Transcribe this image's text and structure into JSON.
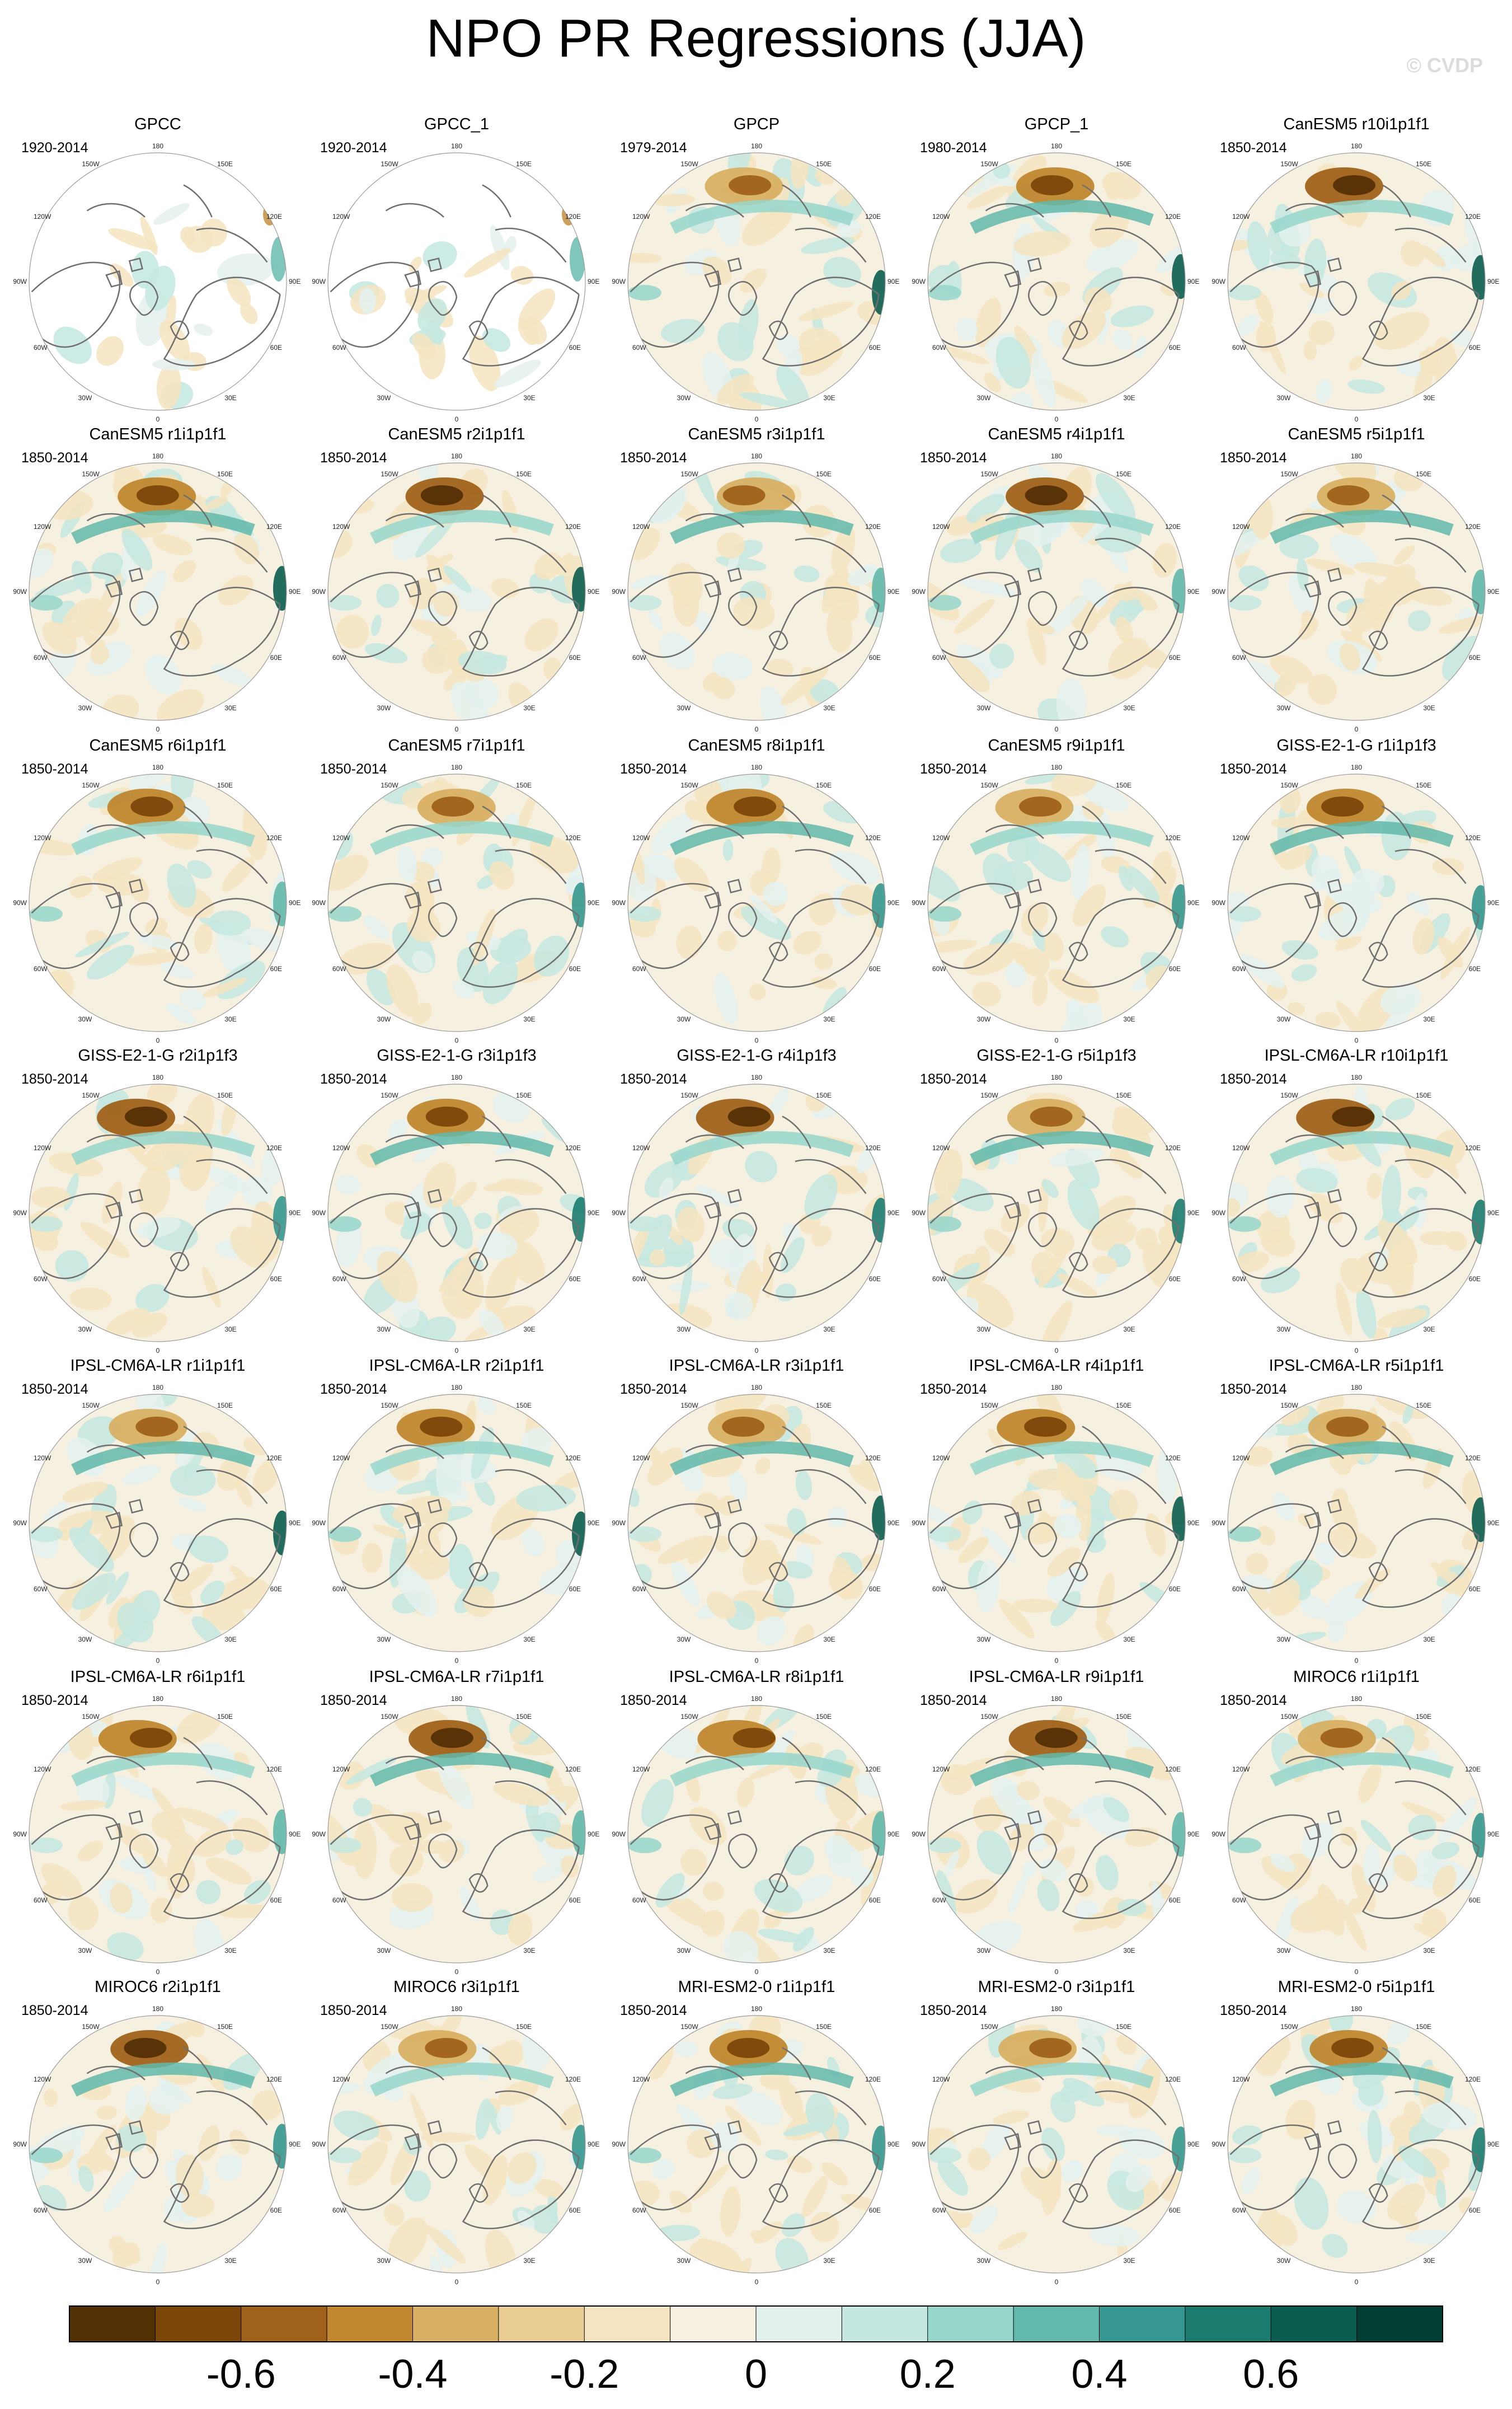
{
  "title": "NPO PR Regressions (JJA)",
  "watermark": "© CVDP",
  "map_labels": {
    "top": "180",
    "top_left": "150W",
    "top_right": "150E",
    "upper_left": "120W",
    "upper_right": "120E",
    "left": "90W",
    "right": "90E",
    "lower_left": "60W",
    "lower_right": "60E",
    "bottom_left": "30W",
    "bottom_right": "30E",
    "bottom": "0"
  },
  "chart_data": {
    "type": "heatmap",
    "projection": "north-polar stereographic",
    "panels": [
      {
        "title": "GPCC",
        "period": "1920-2014",
        "coverage": "land"
      },
      {
        "title": "GPCC_1",
        "period": "1920-2014",
        "coverage": "land"
      },
      {
        "title": "GPCP",
        "period": "1979-2014",
        "coverage": "full"
      },
      {
        "title": "GPCP_1",
        "period": "1980-2014",
        "coverage": "full"
      },
      {
        "title": "CanESM5 r10i1p1f1",
        "period": "1850-2014",
        "coverage": "full"
      },
      {
        "title": "CanESM5 r1i1p1f1",
        "period": "1850-2014",
        "coverage": "full"
      },
      {
        "title": "CanESM5 r2i1p1f1",
        "period": "1850-2014",
        "coverage": "full"
      },
      {
        "title": "CanESM5 r3i1p1f1",
        "period": "1850-2014",
        "coverage": "full"
      },
      {
        "title": "CanESM5 r4i1p1f1",
        "period": "1850-2014",
        "coverage": "full"
      },
      {
        "title": "CanESM5 r5i1p1f1",
        "period": "1850-2014",
        "coverage": "full"
      },
      {
        "title": "CanESM5 r6i1p1f1",
        "period": "1850-2014",
        "coverage": "full"
      },
      {
        "title": "CanESM5 r7i1p1f1",
        "period": "1850-2014",
        "coverage": "full"
      },
      {
        "title": "CanESM5 r8i1p1f1",
        "period": "1850-2014",
        "coverage": "full"
      },
      {
        "title": "CanESM5 r9i1p1f1",
        "period": "1850-2014",
        "coverage": "full"
      },
      {
        "title": "GISS-E2-1-G r1i1p1f3",
        "period": "1850-2014",
        "coverage": "full"
      },
      {
        "title": "GISS-E2-1-G r2i1p1f3",
        "period": "1850-2014",
        "coverage": "full"
      },
      {
        "title": "GISS-E2-1-G r3i1p1f3",
        "period": "1850-2014",
        "coverage": "full"
      },
      {
        "title": "GISS-E2-1-G r4i1p1f3",
        "period": "1850-2014",
        "coverage": "full"
      },
      {
        "title": "GISS-E2-1-G r5i1p1f3",
        "period": "1850-2014",
        "coverage": "full"
      },
      {
        "title": "IPSL-CM6A-LR r10i1p1f1",
        "period": "1850-2014",
        "coverage": "full"
      },
      {
        "title": "IPSL-CM6A-LR r1i1p1f1",
        "period": "1850-2014",
        "coverage": "full"
      },
      {
        "title": "IPSL-CM6A-LR r2i1p1f1",
        "period": "1850-2014",
        "coverage": "full"
      },
      {
        "title": "IPSL-CM6A-LR r3i1p1f1",
        "period": "1850-2014",
        "coverage": "full"
      },
      {
        "title": "IPSL-CM6A-LR r4i1p1f1",
        "period": "1850-2014",
        "coverage": "full"
      },
      {
        "title": "IPSL-CM6A-LR r5i1p1f1",
        "period": "1850-2014",
        "coverage": "full"
      },
      {
        "title": "IPSL-CM6A-LR r6i1p1f1",
        "period": "1850-2014",
        "coverage": "full"
      },
      {
        "title": "IPSL-CM6A-LR r7i1p1f1",
        "period": "1850-2014",
        "coverage": "full"
      },
      {
        "title": "IPSL-CM6A-LR r8i1p1f1",
        "period": "1850-2014",
        "coverage": "full"
      },
      {
        "title": "IPSL-CM6A-LR r9i1p1f1",
        "period": "1850-2014",
        "coverage": "full"
      },
      {
        "title": "MIROC6 r1i1p1f1",
        "period": "1850-2014",
        "coverage": "full"
      },
      {
        "title": "MIROC6 r2i1p1f1",
        "period": "1850-2014",
        "coverage": "full"
      },
      {
        "title": "MIROC6 r3i1p1f1",
        "period": "1850-2014",
        "coverage": "full"
      },
      {
        "title": "MRI-ESM2-0 r1i1p1f1",
        "period": "1850-2014",
        "coverage": "full"
      },
      {
        "title": "MRI-ESM2-0 r3i1p1f1",
        "period": "1850-2014",
        "coverage": "full"
      },
      {
        "title": "MRI-ESM2-0 r5i1p1f1",
        "period": "1850-2014",
        "coverage": "full"
      }
    ],
    "colorbar": {
      "min": -0.8,
      "max": 0.8,
      "step": 0.1,
      "tick_labels": [
        "-0.6",
        "-0.4",
        "-0.2",
        "0",
        "0.2",
        "0.4",
        "0.6"
      ],
      "tick_values": [
        -0.6,
        -0.4,
        -0.2,
        0,
        0.2,
        0.4,
        0.6
      ],
      "colors": [
        "#543005",
        "#7b4709",
        "#a0621a",
        "#c0872f",
        "#d8b064",
        "#e9cd95",
        "#f4e4c0",
        "#f6f0e0",
        "#e4f1ee",
        "#c4e8e0",
        "#97d6cb",
        "#62b8aa",
        "#35978f",
        "#1b7b6f",
        "#0b5d4f",
        "#013d30"
      ]
    }
  }
}
